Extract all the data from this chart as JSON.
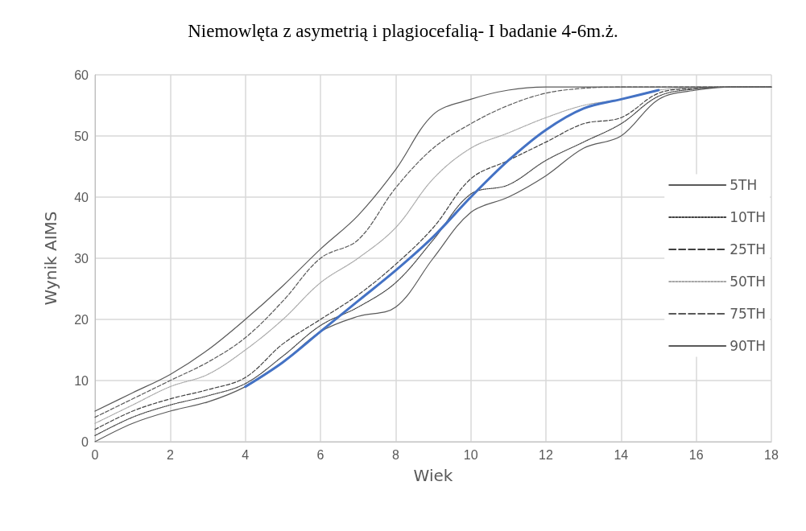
{
  "chart_data": {
    "type": "line",
    "title": "Niemowlęta z asymetrią i plagiocefalią- I badanie 4-6m.ż.",
    "xlabel": "Wiek",
    "ylabel": "Wynik AIMS",
    "xlim": [
      0,
      18
    ],
    "xticks": [
      0,
      2,
      4,
      6,
      8,
      10,
      12,
      14,
      16,
      18
    ],
    "ylim": [
      0,
      60
    ],
    "yticks": [
      0,
      10,
      20,
      30,
      40,
      50,
      60
    ],
    "grid": true,
    "legend": "right",
    "marker": "none",
    "series": [
      {
        "name": "5TH",
        "color": "#595959",
        "line_style": "solid",
        "x": [
          0,
          1,
          2,
          3,
          4,
          5,
          6,
          7,
          8,
          9,
          10,
          11,
          12,
          13,
          14,
          15,
          16,
          17,
          18
        ],
        "values": [
          0,
          3,
          5,
          6.5,
          9,
          13,
          18,
          20.5,
          22,
          30,
          37.5,
          40,
          43.5,
          48,
          50,
          56,
          57.5,
          58,
          58
        ]
      },
      {
        "name": "10TH",
        "color": "#404040",
        "line_style": "dotted",
        "x": [
          0,
          1,
          2,
          3,
          4,
          5,
          6,
          7,
          8,
          9,
          10,
          11,
          12,
          13,
          14,
          15,
          16,
          17,
          18
        ],
        "values": [
          1,
          4,
          6,
          7.5,
          9.5,
          14,
          19,
          22,
          26,
          33,
          40.5,
          42,
          46,
          49,
          52,
          56.5,
          57.7,
          58,
          58
        ]
      },
      {
        "name": "25TH",
        "color": "#404040",
        "line_style": "dashed",
        "x": [
          0,
          1,
          2,
          3,
          4,
          5,
          6,
          7,
          8,
          9,
          10,
          11,
          12,
          13,
          14,
          15,
          16,
          17,
          18
        ],
        "values": [
          2,
          5,
          7,
          8.5,
          10.5,
          16,
          20,
          24,
          29,
          35,
          43,
          46,
          49,
          52,
          53,
          57,
          57.8,
          58,
          58
        ]
      },
      {
        "name": "50TH",
        "color": "#a6a6a6",
        "line_style": "dotted",
        "x": [
          0,
          1,
          2,
          3,
          4,
          5,
          6,
          7,
          8,
          9,
          10,
          11,
          12,
          13,
          14,
          15,
          16,
          17,
          18
        ],
        "values": [
          3,
          6,
          9,
          11,
          15,
          20,
          26,
          30,
          35,
          43,
          48,
          50.5,
          53,
          55,
          56,
          57.5,
          57.9,
          58,
          58
        ]
      },
      {
        "name": "75TH",
        "color": "#595959",
        "line_style": "dashed",
        "x": [
          0,
          1,
          2,
          3,
          4,
          5,
          6,
          7,
          8,
          9,
          10,
          11,
          12,
          13,
          14,
          15,
          16,
          17,
          18
        ],
        "values": [
          4,
          7,
          10,
          13,
          17,
          23,
          30,
          33,
          41.5,
          48,
          52,
          55,
          57,
          57.8,
          58,
          58,
          58,
          58,
          58
        ]
      },
      {
        "name": "90TH",
        "color": "#595959",
        "line_style": "solid",
        "x": [
          0,
          1,
          2,
          3,
          4,
          5,
          6,
          7,
          8,
          9,
          10,
          11,
          12,
          13,
          14,
          15,
          16,
          17,
          18
        ],
        "values": [
          5,
          8,
          11,
          15,
          20,
          25.5,
          31.5,
          37,
          44.5,
          53.5,
          56,
          57.5,
          58,
          58,
          58,
          58,
          58,
          58,
          58
        ]
      },
      {
        "color": "#4472c4",
        "line_style": "solid",
        "x": [
          4,
          5,
          6,
          7,
          8,
          9,
          10,
          11,
          12,
          13,
          14,
          15
        ],
        "values": [
          9,
          13,
          18,
          23,
          28,
          33.5,
          40,
          46,
          51,
          54.5,
          56,
          57.5
        ]
      }
    ]
  }
}
